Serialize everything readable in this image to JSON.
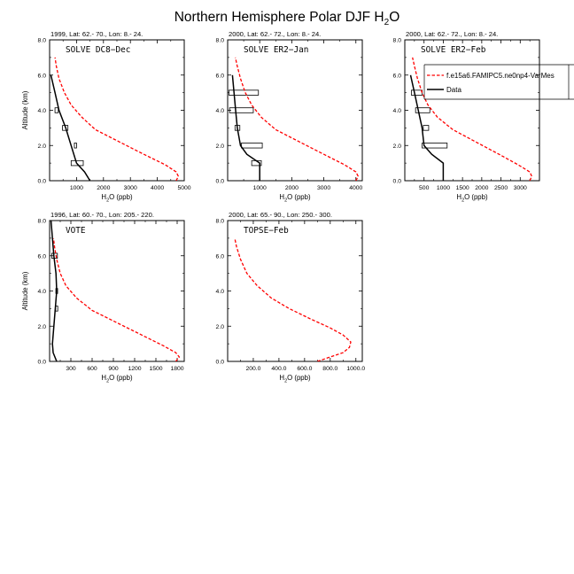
{
  "figure": {
    "title_main": "Northern Hemisphere Polar DJF H",
    "title_sub": "2",
    "title_end": "O"
  },
  "legend": {
    "model_label": "f.e15a6.FAMIPC5.ne0np4-VarMes",
    "data_label": "Data",
    "model_color": "#ff0000",
    "data_color": "#000000"
  },
  "chart_data": [
    {
      "type": "line",
      "header": "1999, Lat: 62.- 70., Lon: 8.- 24.",
      "campaign": "SOLVE DC8−Dec",
      "xlabel_main": "H",
      "xlabel_sub": "2",
      "xlabel_end": "O (ppb)",
      "ylabel": "Altitude (km)",
      "xlim": [
        0,
        5000
      ],
      "ylim": [
        0,
        8
      ],
      "xticks": [
        1000,
        2000,
        3000,
        4000,
        5000
      ],
      "xtick_labels": [
        "1000",
        "2000",
        "3000",
        "4000",
        "5000"
      ],
      "yticks": [
        0,
        2,
        4,
        6,
        8
      ],
      "ytick_labels": [
        "0.0",
        "2.0",
        "4.0",
        "6.0",
        "8.0"
      ],
      "model": {
        "x": [
          4700,
          4780,
          4700,
          4300,
          3500,
          2600,
          1700,
          1200,
          800,
          550,
          350,
          250,
          200
        ],
        "y": [
          0.0,
          0.25,
          0.5,
          0.9,
          1.5,
          2.2,
          2.9,
          3.6,
          4.3,
          5.0,
          5.8,
          6.5,
          7.0
        ]
      },
      "data": {
        "x": [
          1500,
          1300,
          1000,
          800,
          600,
          350,
          200,
          50
        ],
        "y": [
          0,
          0.5,
          1.0,
          2.0,
          3.0,
          4.0,
          5.0,
          6.0
        ]
      },
      "ranges": [
        {
          "y": 1.0,
          "x0": 800,
          "x1": 1250
        },
        {
          "y": 2.0,
          "x0": 920,
          "x1": 1000
        },
        {
          "y": 3.0,
          "x0": 480,
          "x1": 680
        },
        {
          "y": 4.0,
          "x0": 200,
          "x1": 320
        }
      ]
    },
    {
      "type": "line",
      "header": "2000, Lat: 62.- 72., Lon: 8.- 24.",
      "campaign": "SOLVE ER2−Jan",
      "xlabel_main": "H",
      "xlabel_sub": "2",
      "xlabel_end": "O (ppb)",
      "ylabel": "",
      "xlim": [
        0,
        4200
      ],
      "ylim": [
        0,
        8
      ],
      "xticks": [
        1000,
        2000,
        3000,
        4000
      ],
      "xtick_labels": [
        "1000",
        "2000",
        "3000",
        "4000"
      ],
      "yticks": [
        0,
        2,
        4,
        6,
        8
      ],
      "ytick_labels": [
        "0.0",
        "2.0",
        "4.0",
        "6.0",
        "8.0"
      ],
      "model": {
        "x": [
          4000,
          4070,
          4000,
          3650,
          3000,
          2250,
          1500,
          1050,
          750,
          550,
          400,
          300,
          240
        ],
        "y": [
          0.0,
          0.25,
          0.5,
          0.9,
          1.5,
          2.2,
          2.9,
          3.6,
          4.3,
          5.0,
          5.8,
          6.5,
          7.0
        ]
      },
      "data": {
        "x": [
          1000,
          1000,
          600,
          400,
          300,
          250,
          200,
          150
        ],
        "y": [
          0,
          1.0,
          1.5,
          2.0,
          3.0,
          4.0,
          5.0,
          6.0
        ]
      },
      "ranges": [
        {
          "y": 1.0,
          "x0": 750,
          "x1": 1050
        },
        {
          "y": 2.0,
          "x0": 430,
          "x1": 1080
        },
        {
          "y": 3.0,
          "x0": 230,
          "x1": 380
        },
        {
          "y": 4.0,
          "x0": 60,
          "x1": 800
        },
        {
          "y": 5.0,
          "x0": 40,
          "x1": 960
        }
      ]
    },
    {
      "type": "line",
      "header": "2000, Lat: 62.- 72., Lon: 8.- 24.",
      "campaign": "SOLVE ER2−Feb",
      "xlabel_main": "H",
      "xlabel_sub": "2",
      "xlabel_end": "O (ppb)",
      "ylabel": "",
      "xlim": [
        0,
        3500
      ],
      "ylim": [
        0,
        8
      ],
      "xticks": [
        500,
        1000,
        1500,
        2000,
        2500,
        3000
      ],
      "xtick_labels": [
        "500",
        "1000",
        "1500",
        "2000",
        "2500",
        "3000"
      ],
      "yticks": [
        0,
        2,
        4,
        6,
        8
      ],
      "ytick_labels": [
        "0.0",
        "2.0",
        "4.0",
        "6.0",
        "8.0"
      ],
      "model": {
        "x": [
          3250,
          3300,
          3250,
          2950,
          2450,
          1850,
          1250,
          850,
          600,
          450,
          330,
          250,
          200
        ],
        "y": [
          0.0,
          0.25,
          0.5,
          0.9,
          1.5,
          2.2,
          2.9,
          3.6,
          4.3,
          5.0,
          5.8,
          6.5,
          7.0
        ]
      },
      "data": {
        "x": [
          1000,
          1000,
          700,
          500,
          450,
          350,
          250,
          150
        ],
        "y": [
          0,
          1.0,
          1.5,
          2.0,
          3.0,
          4.0,
          5.0,
          6.0
        ]
      },
      "ranges": [
        {
          "y": 2.0,
          "x0": 450,
          "x1": 1100
        },
        {
          "y": 3.0,
          "x0": 480,
          "x1": 620
        },
        {
          "y": 4.0,
          "x0": 280,
          "x1": 650
        },
        {
          "y": 5.0,
          "x0": 170,
          "x1": 450
        }
      ]
    },
    {
      "type": "line",
      "header": "1996, Lat: 60.- 70., Lon: 205.- 220.",
      "campaign": "VOTE",
      "xlabel_main": "H",
      "xlabel_sub": "2",
      "xlabel_end": "O (ppb)",
      "ylabel": "Altitude (km)",
      "xlim": [
        0,
        1900
      ],
      "ylim": [
        0,
        8
      ],
      "xticks": [
        300,
        600,
        900,
        1200,
        1500,
        1800
      ],
      "xtick_labels": [
        "300",
        "600",
        "900",
        "1200",
        "1500",
        "1800"
      ],
      "yticks": [
        0,
        2,
        4,
        6,
        8
      ],
      "ytick_labels": [
        "0.0",
        "2.0",
        "4.0",
        "6.0",
        "8.0"
      ],
      "model": {
        "x": [
          1780,
          1830,
          1780,
          1600,
          1300,
          950,
          600,
          380,
          230,
          150,
          100,
          70,
          55
        ],
        "y": [
          0.0,
          0.25,
          0.5,
          0.9,
          1.5,
          2.2,
          2.9,
          3.6,
          4.3,
          5.0,
          5.8,
          6.5,
          7.0
        ]
      },
      "data": {
        "x": [
          100,
          50,
          40,
          60,
          80,
          100,
          90,
          60,
          40,
          20
        ],
        "y": [
          0,
          0.5,
          1.0,
          2.0,
          3.0,
          4.0,
          5.0,
          6.0,
          7.0,
          8.0
        ]
      },
      "ranges": [
        {
          "y": 3.0,
          "x0": 85,
          "x1": 115
        },
        {
          "y": 4.0,
          "x0": 88,
          "x1": 112
        },
        {
          "y": 6.0,
          "x0": 30,
          "x1": 110
        }
      ]
    },
    {
      "type": "line",
      "header": "2000, Lat: 65.- 90., Lon: 250.- 300.",
      "campaign": "TOPSE−Feb",
      "xlabel_main": "H",
      "xlabel_sub": "2",
      "xlabel_end": "O (ppb)",
      "ylabel": "",
      "xlim": [
        0,
        1050
      ],
      "ylim": [
        0,
        8
      ],
      "xticks": [
        200,
        400,
        600,
        800,
        1000
      ],
      "xtick_labels": [
        "200.0",
        "400.0",
        "600.0",
        "800.0",
        "1000.0"
      ],
      "yticks": [
        0,
        2,
        4,
        6,
        8
      ],
      "ytick_labels": [
        "0.0",
        "2.0",
        "4.0",
        "6.0",
        "8.0"
      ],
      "model": {
        "x": [
          700,
          800,
          900,
          950,
          960,
          900,
          800,
          650,
          480,
          340,
          230,
          150,
          100,
          70,
          55
        ],
        "y": [
          0.0,
          0.25,
          0.5,
          0.8,
          1.1,
          1.5,
          1.9,
          2.4,
          3.0,
          3.6,
          4.3,
          5.0,
          5.8,
          6.5,
          7.0
        ]
      },
      "data": {
        "x": [],
        "y": []
      },
      "ranges": []
    }
  ]
}
